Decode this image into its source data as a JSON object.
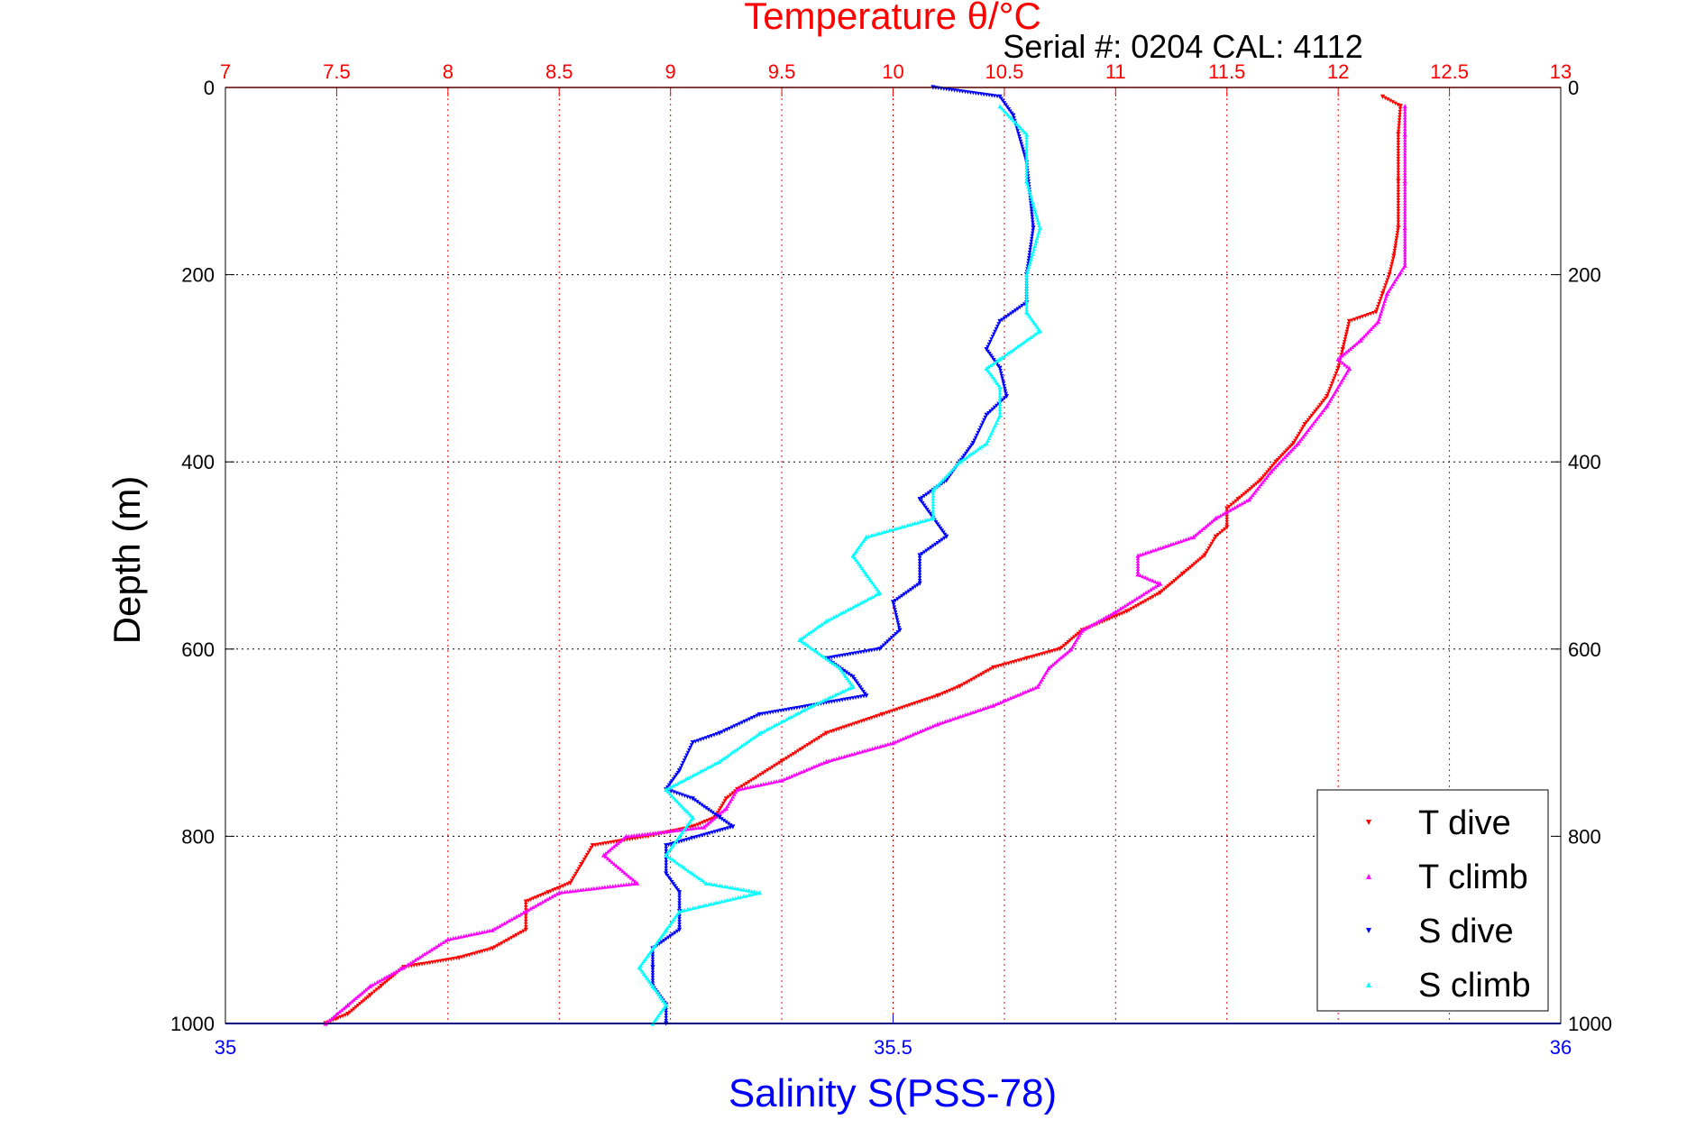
{
  "chart_data": {
    "type": "scatter",
    "title": "Temperature θ/°C",
    "subtitle": "Serial #: 0204  CAL: 4112",
    "ylabel": "Depth (m)",
    "xlabel": "Salinity S(PSS-78)",
    "temperature_axis": {
      "range": [
        7,
        13
      ],
      "ticks": [
        "7",
        "7.5",
        "8",
        "8.5",
        "9",
        "9.5",
        "10",
        "10.5",
        "11",
        "11.5",
        "12",
        "12.5",
        "13"
      ],
      "color": "#ff0000"
    },
    "salinity_axis": {
      "range": [
        35,
        36
      ],
      "ticks": [
        "35",
        "35.5",
        "36"
      ],
      "color": "#0000ff"
    },
    "depth_axis": {
      "range": [
        0,
        1000
      ],
      "reversed": true,
      "ticks": [
        "0",
        "200",
        "400",
        "600",
        "800",
        "1000"
      ]
    },
    "grid": true,
    "legend_position": "bottom-right",
    "series": [
      {
        "name": "T dive",
        "axis": "temperature",
        "color": "#ff0000",
        "marker": "down-triangle",
        "points": [
          [
            12.2,
            10
          ],
          [
            12.28,
            20
          ],
          [
            12.27,
            50
          ],
          [
            12.27,
            100
          ],
          [
            12.27,
            150
          ],
          [
            12.25,
            180
          ],
          [
            12.23,
            200
          ],
          [
            12.2,
            220
          ],
          [
            12.17,
            240
          ],
          [
            12.05,
            250
          ],
          [
            12.02,
            280
          ],
          [
            12.0,
            300
          ],
          [
            11.95,
            330
          ],
          [
            11.85,
            360
          ],
          [
            11.8,
            380
          ],
          [
            11.72,
            400
          ],
          [
            11.65,
            420
          ],
          [
            11.55,
            440
          ],
          [
            11.5,
            450
          ],
          [
            11.5,
            470
          ],
          [
            11.45,
            480
          ],
          [
            11.4,
            500
          ],
          [
            11.3,
            520
          ],
          [
            11.2,
            540
          ],
          [
            11.05,
            560
          ],
          [
            10.85,
            580
          ],
          [
            10.75,
            600
          ],
          [
            10.6,
            610
          ],
          [
            10.45,
            620
          ],
          [
            10.3,
            640
          ],
          [
            10.2,
            650
          ],
          [
            9.95,
            670
          ],
          [
            9.7,
            690
          ],
          [
            9.5,
            720
          ],
          [
            9.3,
            750
          ],
          [
            9.25,
            760
          ],
          [
            9.2,
            780
          ],
          [
            9.1,
            790
          ],
          [
            8.9,
            800
          ],
          [
            8.65,
            810
          ],
          [
            8.6,
            830
          ],
          [
            8.55,
            850
          ],
          [
            8.45,
            860
          ],
          [
            8.35,
            870
          ],
          [
            8.35,
            900
          ],
          [
            8.2,
            920
          ],
          [
            8.05,
            930
          ],
          [
            7.8,
            940
          ],
          [
            7.7,
            960
          ],
          [
            7.65,
            970
          ],
          [
            7.55,
            990
          ],
          [
            7.45,
            1000
          ]
        ]
      },
      {
        "name": "T climb",
        "axis": "temperature",
        "color": "#ff00ff",
        "marker": "up-triangle",
        "points": [
          [
            12.3,
            20
          ],
          [
            12.3,
            50
          ],
          [
            12.3,
            100
          ],
          [
            12.3,
            150
          ],
          [
            12.3,
            190
          ],
          [
            12.22,
            220
          ],
          [
            12.18,
            250
          ],
          [
            12.1,
            270
          ],
          [
            12.0,
            290
          ],
          [
            12.05,
            300
          ],
          [
            11.95,
            340
          ],
          [
            11.82,
            380
          ],
          [
            11.7,
            410
          ],
          [
            11.6,
            440
          ],
          [
            11.45,
            460
          ],
          [
            11.35,
            480
          ],
          [
            11.1,
            500
          ],
          [
            11.1,
            520
          ],
          [
            11.2,
            530
          ],
          [
            11.0,
            560
          ],
          [
            10.85,
            580
          ],
          [
            10.8,
            600
          ],
          [
            10.7,
            620
          ],
          [
            10.65,
            640
          ],
          [
            10.45,
            660
          ],
          [
            10.2,
            680
          ],
          [
            10.0,
            700
          ],
          [
            9.7,
            720
          ],
          [
            9.5,
            740
          ],
          [
            9.3,
            750
          ],
          [
            9.25,
            770
          ],
          [
            9.15,
            790
          ],
          [
            8.8,
            800
          ],
          [
            8.7,
            820
          ],
          [
            8.85,
            850
          ],
          [
            8.5,
            860
          ],
          [
            8.35,
            880
          ],
          [
            8.2,
            900
          ],
          [
            8.0,
            910
          ],
          [
            7.8,
            940
          ],
          [
            7.65,
            960
          ],
          [
            7.55,
            980
          ],
          [
            7.45,
            1000
          ]
        ]
      },
      {
        "name": "S dive",
        "axis": "salinity",
        "color": "#0000ff",
        "marker": "down-triangle",
        "points": [
          [
            35.53,
            0
          ],
          [
            35.58,
            10
          ],
          [
            35.59,
            30
          ],
          [
            35.6,
            80
          ],
          [
            35.605,
            150
          ],
          [
            35.6,
            200
          ],
          [
            35.6,
            230
          ],
          [
            35.58,
            250
          ],
          [
            35.57,
            280
          ],
          [
            35.58,
            300
          ],
          [
            35.585,
            330
          ],
          [
            35.57,
            350
          ],
          [
            35.56,
            380
          ],
          [
            35.55,
            400
          ],
          [
            35.54,
            420
          ],
          [
            35.52,
            440
          ],
          [
            35.53,
            460
          ],
          [
            35.54,
            480
          ],
          [
            35.52,
            500
          ],
          [
            35.52,
            530
          ],
          [
            35.5,
            550
          ],
          [
            35.505,
            580
          ],
          [
            35.49,
            600
          ],
          [
            35.45,
            610
          ],
          [
            35.47,
            630
          ],
          [
            35.48,
            650
          ],
          [
            35.4,
            670
          ],
          [
            35.37,
            690
          ],
          [
            35.35,
            700
          ],
          [
            35.34,
            730
          ],
          [
            35.33,
            750
          ],
          [
            35.35,
            760
          ],
          [
            35.37,
            780
          ],
          [
            35.38,
            790
          ],
          [
            35.33,
            810
          ],
          [
            35.33,
            840
          ],
          [
            35.34,
            860
          ],
          [
            35.34,
            880
          ],
          [
            35.34,
            900
          ],
          [
            35.32,
            920
          ],
          [
            35.32,
            940
          ],
          [
            35.32,
            960
          ],
          [
            35.33,
            980
          ],
          [
            35.33,
            1000
          ]
        ]
      },
      {
        "name": "S climb",
        "axis": "salinity",
        "color": "#00ffff",
        "marker": "up-triangle",
        "points": [
          [
            35.58,
            20
          ],
          [
            35.6,
            50
          ],
          [
            35.6,
            100
          ],
          [
            35.61,
            150
          ],
          [
            35.6,
            200
          ],
          [
            35.6,
            240
          ],
          [
            35.61,
            260
          ],
          [
            35.58,
            290
          ],
          [
            35.57,
            300
          ],
          [
            35.58,
            320
          ],
          [
            35.58,
            350
          ],
          [
            35.57,
            380
          ],
          [
            35.55,
            400
          ],
          [
            35.53,
            430
          ],
          [
            35.53,
            460
          ],
          [
            35.48,
            480
          ],
          [
            35.47,
            500
          ],
          [
            35.48,
            520
          ],
          [
            35.49,
            540
          ],
          [
            35.45,
            570
          ],
          [
            35.43,
            590
          ],
          [
            35.46,
            620
          ],
          [
            35.47,
            640
          ],
          [
            35.44,
            660
          ],
          [
            35.4,
            690
          ],
          [
            35.37,
            720
          ],
          [
            35.33,
            750
          ],
          [
            35.35,
            780
          ],
          [
            35.34,
            800
          ],
          [
            35.33,
            820
          ],
          [
            35.36,
            850
          ],
          [
            35.4,
            860
          ],
          [
            35.34,
            880
          ],
          [
            35.33,
            900
          ],
          [
            35.32,
            920
          ],
          [
            35.31,
            940
          ],
          [
            35.32,
            960
          ],
          [
            35.33,
            980
          ],
          [
            35.32,
            1000
          ]
        ]
      }
    ]
  }
}
